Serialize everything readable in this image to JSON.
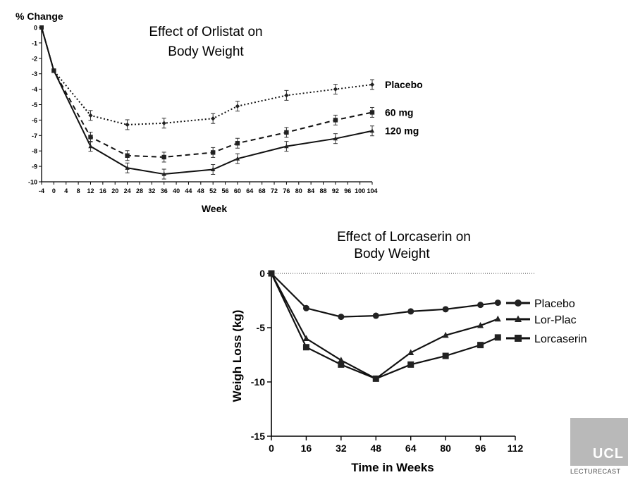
{
  "chart_data": [
    {
      "type": "line",
      "title": "Effect of Orlistat on Body Weight",
      "ylabel": "% Change",
      "xlabel": "Week",
      "xlim": [
        -4,
        104
      ],
      "ylim": [
        -10,
        0
      ],
      "xticks": [
        "-4",
        "0",
        "4",
        "8",
        "12",
        "16",
        "20",
        "24",
        "28",
        "32",
        "36",
        "40",
        "44",
        "48",
        "52",
        "56",
        "60",
        "64",
        "68",
        "72",
        "76",
        "80",
        "84",
        "88",
        "92",
        "96",
        "100",
        "104"
      ],
      "yticks": [
        "0",
        "-1",
        "-2",
        "-3",
        "-4",
        "-5",
        "-6",
        "-7",
        "-8",
        "-9",
        "-10"
      ],
      "series": [
        {
          "name": "Placebo",
          "line": "dotted",
          "marker": "diamond",
          "x": [
            -4,
            0,
            12,
            24,
            36,
            52,
            60,
            76,
            92,
            104
          ],
          "y": [
            0,
            -2.8,
            -5.7,
            -6.3,
            -6.2,
            -5.9,
            -5.1,
            -4.4,
            -4.0,
            -3.7
          ]
        },
        {
          "name": "60 mg",
          "line": "dashed",
          "marker": "square",
          "x": [
            -4,
            0,
            12,
            24,
            36,
            52,
            60,
            76,
            92,
            104
          ],
          "y": [
            0,
            -2.8,
            -7.1,
            -8.3,
            -8.4,
            -8.1,
            -7.5,
            -6.8,
            -6.0,
            -5.5
          ]
        },
        {
          "name": "120 mg",
          "line": "solid",
          "marker": "triangle",
          "x": [
            -4,
            0,
            12,
            24,
            36,
            52,
            60,
            76,
            92,
            104
          ],
          "y": [
            0,
            -2.8,
            -7.7,
            -9.1,
            -9.5,
            -9.2,
            -8.5,
            -7.7,
            -7.2,
            -6.7
          ]
        }
      ],
      "error_bars": true
    },
    {
      "type": "line",
      "title": "Effect of Lorcaserin on Body Weight",
      "ylabel": "Weigh Loss (kg)",
      "xlabel": "Time in Weeks",
      "xlim": [
        0,
        112
      ],
      "ylim": [
        -15,
        0
      ],
      "xticks": [
        "0",
        "16",
        "32",
        "48",
        "64",
        "80",
        "96",
        "112"
      ],
      "yticks": [
        "0",
        "-5",
        "-10",
        "-15"
      ],
      "series": [
        {
          "name": "Placebo",
          "marker": "circle",
          "x": [
            0,
            16,
            32,
            48,
            64,
            80,
            96,
            104
          ],
          "y": [
            0,
            -3.2,
            -4.0,
            -3.9,
            -3.5,
            -3.3,
            -2.9,
            -2.7
          ]
        },
        {
          "name": "Lor-Plac",
          "marker": "triangle",
          "x": [
            0,
            16,
            32,
            48,
            64,
            80,
            96,
            104
          ],
          "y": [
            0,
            -6.0,
            -8.0,
            -9.7,
            -7.3,
            -5.7,
            -4.8,
            -4.2
          ]
        },
        {
          "name": "Lorcaserin",
          "marker": "square",
          "x": [
            0,
            16,
            32,
            48,
            64,
            80,
            96,
            104
          ],
          "y": [
            0,
            -6.8,
            -8.4,
            -9.7,
            -8.4,
            -7.6,
            -6.6,
            -5.9
          ]
        }
      ],
      "reference_line": 0
    }
  ],
  "logo": {
    "name": "UCL",
    "caption": "LECTURECAST"
  }
}
